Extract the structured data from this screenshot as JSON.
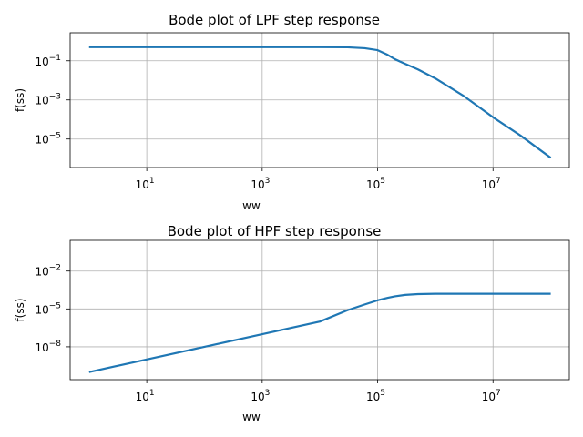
{
  "chart_data": [
    {
      "type": "line",
      "title": "Bode plot of LPF step response",
      "xlabel": "ww",
      "ylabel": "f(ss)",
      "x_scale": "log",
      "y_scale": "log",
      "xlim": [
        0.47,
        210000000
      ],
      "ylim": [
        3.5e-07,
        2.7
      ],
      "x_ticks": [
        {
          "value": 10,
          "base": "10",
          "exp": "1"
        },
        {
          "value": 1000,
          "base": "10",
          "exp": "3"
        },
        {
          "value": 100000,
          "base": "10",
          "exp": "5"
        },
        {
          "value": 10000000,
          "base": "10",
          "exp": "7"
        }
      ],
      "y_ticks": [
        {
          "value": 0.1,
          "base": "10",
          "exp": "−1"
        },
        {
          "value": 0.001,
          "base": "10",
          "exp": "−3"
        },
        {
          "value": 1e-05,
          "base": "10",
          "exp": "−5"
        }
      ],
      "grid": true,
      "series": [
        {
          "color": "#1f77b4",
          "x": [
            1,
            10,
            100,
            1000,
            10000,
            30000,
            60000,
            100000,
            150000,
            200000,
            300000,
            500000,
            1000000,
            3000000,
            10000000,
            30000000,
            100000000
          ],
          "values": [
            0.5,
            0.5,
            0.5,
            0.5,
            0.499,
            0.49,
            0.44,
            0.35,
            0.2,
            0.12,
            0.07,
            0.036,
            0.0126,
            0.0017,
            0.00013,
            1.5e-05,
            1.1e-06
          ]
        }
      ]
    },
    {
      "type": "line",
      "title": "Bode plot of HPF step response",
      "xlabel": "ww",
      "ylabel": "f(ss)",
      "x_scale": "log",
      "y_scale": "log",
      "xlim": [
        0.47,
        210000000
      ],
      "ylim": [
        2.5e-11,
        2.7
      ],
      "x_ticks": [
        {
          "value": 10,
          "base": "10",
          "exp": "1"
        },
        {
          "value": 1000,
          "base": "10",
          "exp": "3"
        },
        {
          "value": 100000,
          "base": "10",
          "exp": "5"
        },
        {
          "value": 10000000,
          "base": "10",
          "exp": "7"
        }
      ],
      "y_ticks": [
        {
          "value": 0.01,
          "base": "10",
          "exp": "−2"
        },
        {
          "value": 1e-05,
          "base": "10",
          "exp": "−5"
        },
        {
          "value": 1e-08,
          "base": "10",
          "exp": "−8"
        }
      ],
      "grid": true,
      "series": [
        {
          "color": "#1f77b4",
          "x": [
            1,
            10,
            100,
            1000,
            10000,
            30000,
            60000,
            100000,
            150000,
            200000,
            300000,
            500000,
            1000000,
            10000000,
            100000000
          ],
          "values": [
            1e-10,
            1e-09,
            1e-08,
            1e-07,
            1e-06,
            7.9e-06,
            2.27e-05,
            4.8e-05,
            7.7e-05,
            0.0001,
            0.00013,
            0.00015,
            0.00016,
            0.00016,
            0.00016
          ]
        }
      ]
    }
  ]
}
